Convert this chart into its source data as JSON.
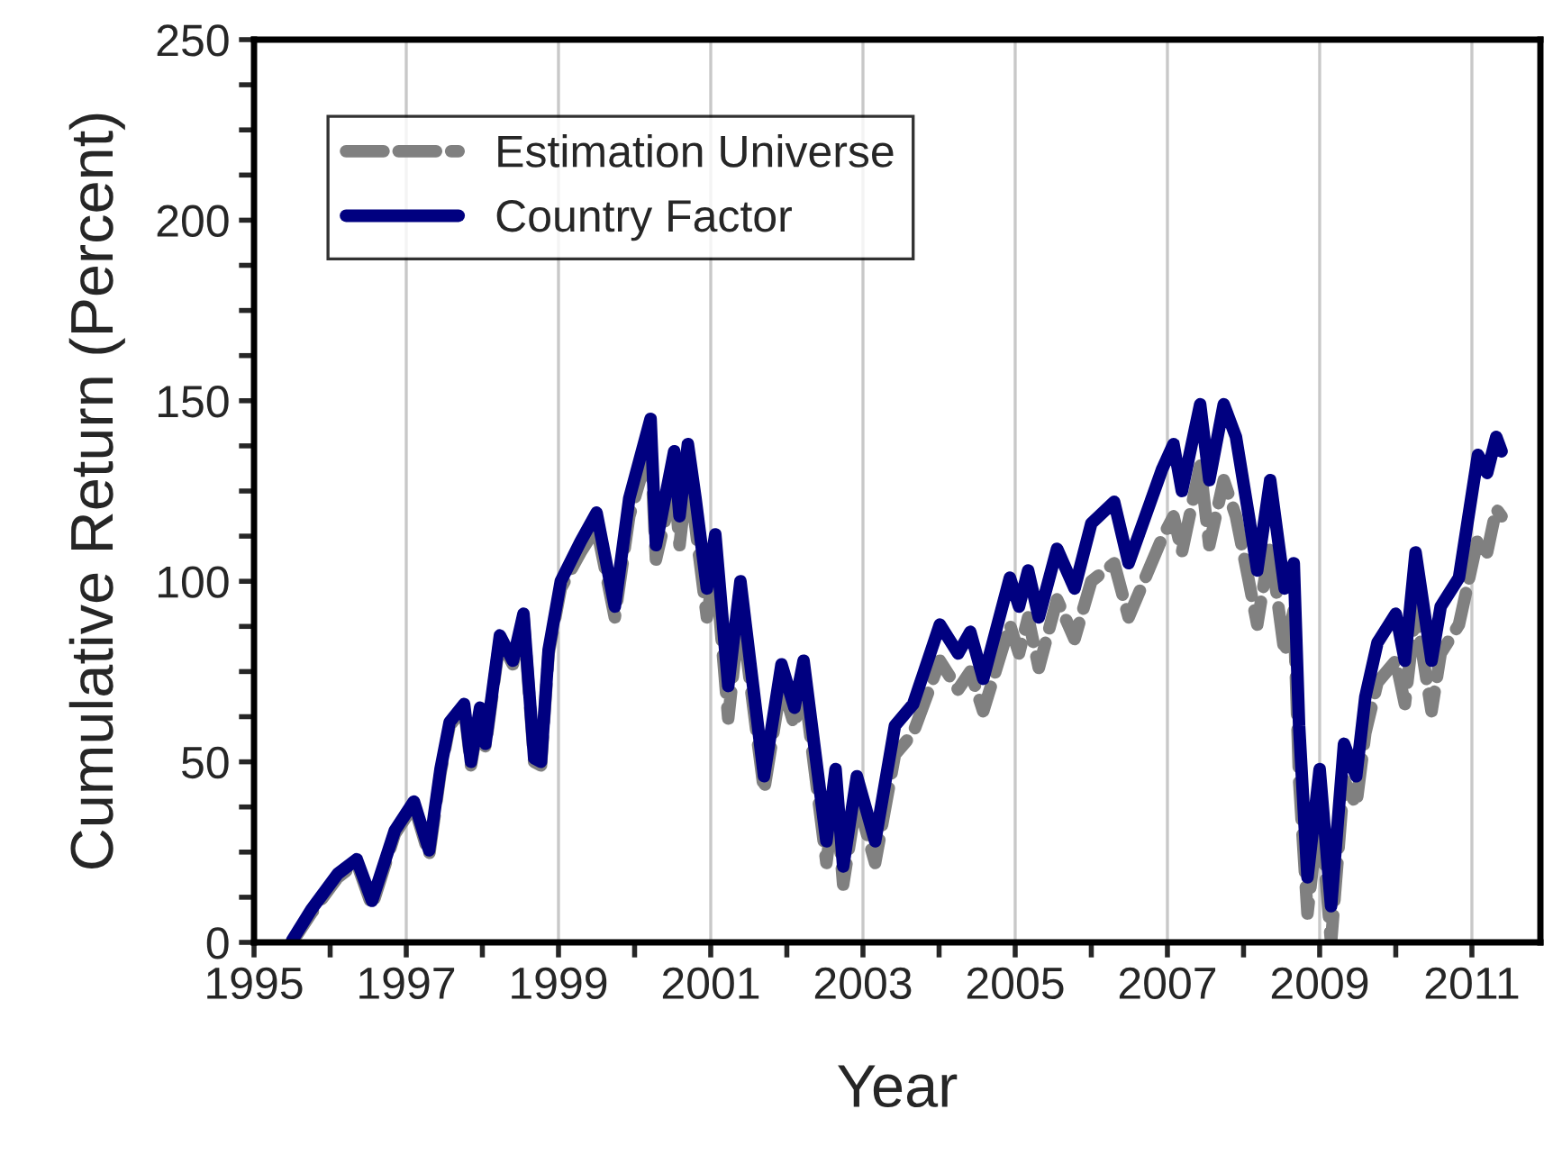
{
  "chart_data": {
    "type": "line",
    "xlabel": "Year",
    "ylabel": "Cumulative Return (Percent)",
    "xlim": [
      1995,
      2011.9
    ],
    "ylim": [
      0,
      250
    ],
    "xticks": [
      1995,
      {
        "value": 1996,
        "label": null
      },
      1997,
      {
        "value": 1998,
        "label": null
      },
      1999,
      {
        "value": 2000,
        "label": null
      },
      2001,
      {
        "value": 2002,
        "label": null
      },
      2003,
      {
        "value": 2004,
        "label": null
      },
      2005,
      {
        "value": 2006,
        "label": null
      },
      2007,
      {
        "value": 2008,
        "label": null
      },
      2009,
      {
        "value": 2010,
        "label": null
      },
      2011
    ],
    "yticks": [
      0,
      {
        "value": 12.5,
        "label": null
      },
      {
        "value": 25,
        "label": null
      },
      {
        "value": 37.5,
        "label": null
      },
      50,
      {
        "value": 62.5,
        "label": null
      },
      {
        "value": 75,
        "label": null
      },
      {
        "value": 87.5,
        "label": null
      },
      100,
      {
        "value": 112.5,
        "label": null
      },
      {
        "value": 125,
        "label": null
      },
      {
        "value": 137.5,
        "label": null
      },
      150,
      {
        "value": 162.5,
        "label": null
      },
      {
        "value": 175,
        "label": null
      },
      {
        "value": 187.5,
        "label": null
      },
      200,
      {
        "value": 212.5,
        "label": null
      },
      {
        "value": 225,
        "label": null
      },
      {
        "value": 237.5,
        "label": null
      },
      250
    ],
    "grid": "x",
    "legend": "top left",
    "marker": "none",
    "x": [
      1995.5,
      1995.75,
      1996.1,
      1996.35,
      1996.55,
      1996.85,
      1997.1,
      1997.3,
      1997.45,
      1997.57,
      1997.76,
      1997.85,
      1997.97,
      1998.04,
      1998.23,
      1998.4,
      1998.54,
      1998.68,
      1998.77,
      1998.87,
      1999.03,
      1999.29,
      1999.5,
      1999.74,
      1999.93,
      2000.21,
      2000.28,
      2000.52,
      2000.59,
      2000.7,
      2000.8,
      2000.95,
      2001.06,
      2001.23,
      2001.39,
      2001.7,
      2001.93,
      2002.1,
      2002.22,
      2002.52,
      2002.64,
      2002.74,
      2002.92,
      2003.16,
      2003.42,
      2003.66,
      2004.01,
      2004.25,
      2004.41,
      2004.58,
      2004.93,
      2005.05,
      2005.17,
      2005.31,
      2005.55,
      2005.78,
      2006.0,
      2006.3,
      2006.49,
      2006.93,
      2007.08,
      2007.19,
      2007.43,
      2007.55,
      2007.74,
      2007.9,
      2008.07,
      2008.18,
      2008.35,
      2008.54,
      2008.66,
      2008.73,
      2008.84,
      2009.0,
      2009.15,
      2009.32,
      2009.48,
      2009.6,
      2009.76,
      2010.0,
      2010.12,
      2010.26,
      2010.47,
      2010.59,
      2010.83,
      2011.08,
      2011.2,
      2011.32,
      2011.39
    ],
    "series": [
      {
        "name": "Estimation Universe",
        "color": "#808080",
        "line_style": "dashed",
        "values": [
          0,
          8,
          18,
          22,
          10,
          30,
          38,
          24,
          47,
          60,
          65,
          49,
          64,
          54,
          84,
          77,
          90,
          50,
          49,
          80,
          98,
          108,
          115,
          90,
          118,
          138,
          106,
          128,
          110,
          130,
          115,
          90,
          105,
          62,
          93,
          42,
          72,
          60,
          72,
          22,
          42,
          16,
          40,
          22,
          52,
          58,
          78,
          70,
          75,
          64,
          88,
          80,
          90,
          76,
          95,
          84,
          100,
          105,
          90,
          112,
          118,
          108,
          132,
          110,
          128,
          118,
          100,
          88,
          110,
          80,
          92,
          45,
          8,
          38,
          0,
          45,
          38,
          58,
          72,
          78,
          66,
          92,
          64,
          80,
          88,
          112,
          108,
          120,
          118
        ]
      },
      {
        "name": "Country Factor",
        "color": "#000080",
        "line_style": "solid",
        "values": [
          0.5,
          9,
          19,
          23,
          11.5,
          31,
          39,
          25.5,
          48,
          61,
          66,
          50,
          65,
          55,
          85,
          78,
          91,
          51,
          50,
          81,
          100,
          111,
          119,
          93,
          123,
          145,
          110,
          136,
          118,
          138,
          123,
          98,
          113,
          71,
          100,
          46,
          77,
          65,
          78,
          28,
          48,
          21,
          46,
          28,
          60,
          66,
          88,
          80,
          86,
          73,
          101,
          93,
          103,
          90,
          109,
          98,
          116,
          122,
          105,
          131,
          138,
          125,
          149,
          128,
          149,
          140,
          118,
          103,
          128,
          98,
          105,
          60,
          18,
          48,
          10,
          55,
          46,
          68,
          83,
          91,
          78,
          108,
          78,
          93,
          101,
          135,
          130,
          140,
          136
        ]
      }
    ]
  }
}
